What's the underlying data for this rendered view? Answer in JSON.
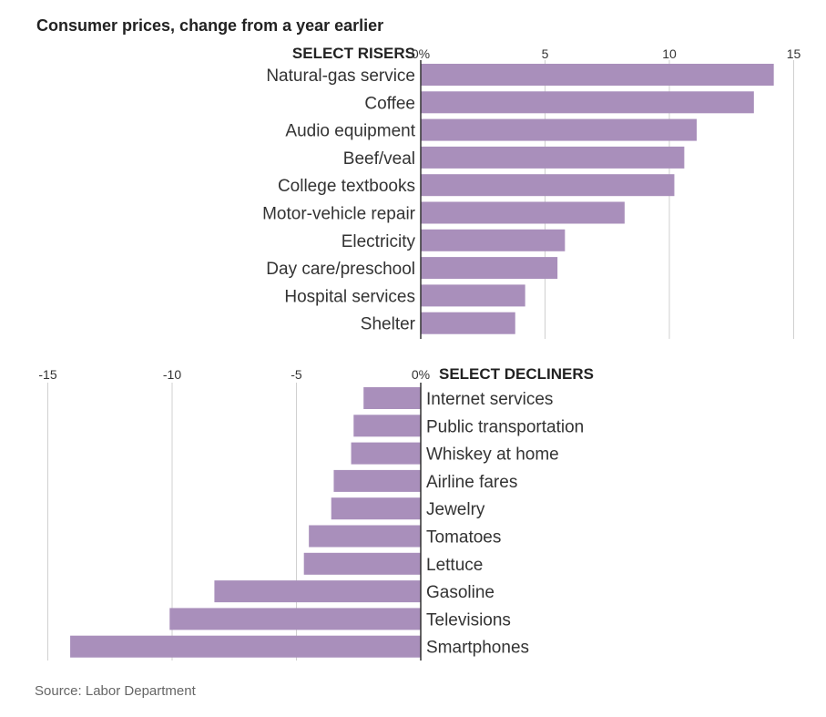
{
  "chart_data": [
    {
      "type": "bar",
      "orientation": "horizontal",
      "title": "Consumer prices, change from a year earlier",
      "section_label": "SELECT RISERS",
      "categories": [
        "Natural-gas service",
        "Coffee",
        "Audio equipment",
        "Beef/veal",
        "College textbooks",
        "Motor-vehicle repair",
        "Electricity",
        "Day care/preschool",
        "Hospital services",
        "Shelter"
      ],
      "values": [
        14.2,
        13.4,
        11.1,
        10.6,
        10.2,
        8.2,
        5.8,
        5.5,
        4.2,
        3.8
      ],
      "xlim": [
        0,
        15
      ],
      "ticks": [
        0,
        5,
        10,
        15
      ],
      "tick_labels": [
        "0%",
        "5",
        "10",
        "15"
      ],
      "unit": "%",
      "grid": true
    },
    {
      "type": "bar",
      "orientation": "horizontal",
      "section_label": "SELECT DECLINERS",
      "categories": [
        "Internet services",
        "Public transportation",
        "Whiskey at home",
        "Airline fares",
        "Jewelry",
        "Tomatoes",
        "Lettuce",
        "Gasoline",
        "Televisions",
        "Smartphones"
      ],
      "values": [
        -2.3,
        -2.7,
        -2.8,
        -3.5,
        -3.6,
        -4.5,
        -4.7,
        -8.3,
        -10.1,
        -14.1
      ],
      "xlim": [
        -15,
        0
      ],
      "ticks": [
        -15,
        -10,
        -5,
        0
      ],
      "tick_labels": [
        "-15",
        "-10",
        "-5",
        "0%"
      ],
      "unit": "%",
      "grid": true
    }
  ],
  "source": "Source: Labor Department",
  "colors": {
    "bar": "#a98fbb",
    "axis": "#333333",
    "grid": "#d0d0d0"
  }
}
